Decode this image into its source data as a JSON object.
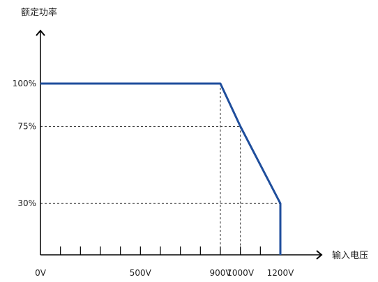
{
  "chart_data": {
    "type": "line",
    "xlabel": "输入电压",
    "ylabel": "额定功率",
    "x_tick_labels": [
      "0V",
      "500V",
      "900V",
      "1000V",
      "1200V"
    ],
    "x_tick_values": [
      0,
      500,
      900,
      1000,
      1200
    ],
    "y_tick_labels": [
      "100%",
      "75%",
      "30%"
    ],
    "y_tick_values": [
      100,
      75,
      30
    ],
    "xlim": [
      0,
      1250
    ],
    "ylim": [
      0,
      120
    ],
    "minor_x_ticks": [
      0,
      100,
      200,
      300,
      400,
      500,
      600,
      700,
      800,
      900,
      1000,
      1100,
      1200
    ],
    "reference_lines": [
      {
        "x": 900,
        "y": 100
      },
      {
        "x": 1000,
        "y": 75
      },
      {
        "x": 1200,
        "y": 30
      }
    ],
    "series": [
      {
        "x": [
          0,
          900,
          1000,
          1200,
          1200
        ],
        "y": [
          100,
          100,
          75,
          30,
          0
        ]
      }
    ],
    "grid": false,
    "legend": "none",
    "colors": {
      "line": "#1f4e9c",
      "axis": "#000000",
      "dashed": "#333333",
      "text": "#222222"
    }
  }
}
